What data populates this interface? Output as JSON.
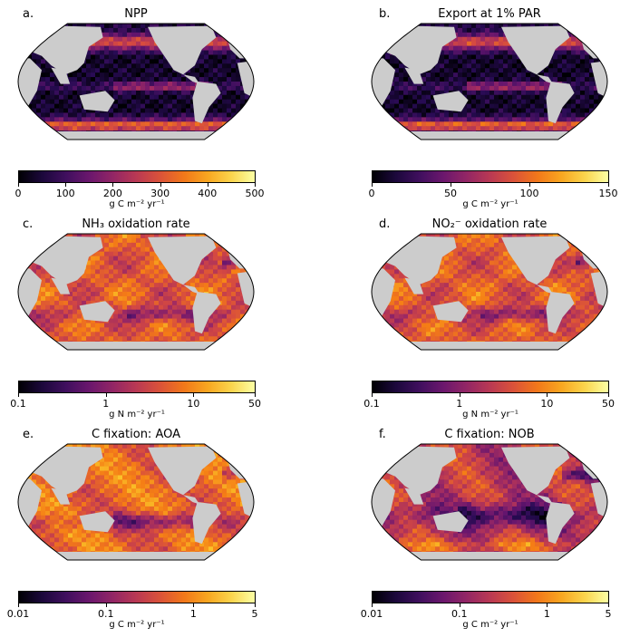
{
  "panels": [
    {
      "letter": "a.",
      "title": "NPP",
      "ticks": [
        "0",
        "100",
        "200",
        "300",
        "400",
        "500"
      ],
      "scale": "linear",
      "range": [
        0,
        500
      ],
      "tick_values": [
        0,
        100,
        200,
        300,
        400,
        500
      ],
      "unit": "g C m⁻² yr⁻¹",
      "colormap": "inferno",
      "pattern": "npp"
    },
    {
      "letter": "b.",
      "title": "Export at 1% PAR",
      "ticks": [
        "0",
        "50",
        "100",
        "150"
      ],
      "scale": "linear",
      "range": [
        0,
        150
      ],
      "tick_values": [
        0,
        50,
        100,
        150
      ],
      "unit": "g C m⁻² yr⁻¹",
      "colormap": "inferno",
      "pattern": "npp"
    },
    {
      "letter": "c.",
      "title": "NH₃ oxidation rate",
      "ticks": [
        "0.1",
        "1",
        "10",
        "50"
      ],
      "scale": "log",
      "range": [
        0.1,
        50
      ],
      "tick_values": [
        0.1,
        1,
        10,
        50
      ],
      "unit": "g N m⁻² yr⁻¹",
      "colormap": "inferno",
      "pattern": "oxid"
    },
    {
      "letter": "d.",
      "title": "NO₂⁻ oxidation rate",
      "ticks": [
        "0.1",
        "1",
        "10",
        "50"
      ],
      "scale": "log",
      "range": [
        0.1,
        50
      ],
      "tick_values": [
        0.1,
        1,
        10,
        50
      ],
      "unit": "g N m⁻² yr⁻¹",
      "colormap": "inferno",
      "pattern": "oxid"
    },
    {
      "letter": "e.",
      "title": "C fixation: AOA",
      "ticks": [
        "0.01",
        "0.1",
        "1",
        "5"
      ],
      "scale": "log",
      "range": [
        0.01,
        5
      ],
      "tick_values": [
        0.01,
        0.1,
        1,
        5
      ],
      "unit": "g C m⁻² yr⁻¹",
      "colormap": "inferno",
      "pattern": "aoa"
    },
    {
      "letter": "f.",
      "title": "C fixation: NOB",
      "ticks": [
        "0.01",
        "0.1",
        "1",
        "5"
      ],
      "scale": "log",
      "range": [
        0.01,
        5
      ],
      "tick_values": [
        0.01,
        0.1,
        1,
        5
      ],
      "unit": "g C m⁻² yr⁻¹",
      "colormap": "inferno",
      "pattern": "nob"
    }
  ],
  "colors": {
    "land": "#cccccc",
    "ocean_edge": "#000000"
  }
}
